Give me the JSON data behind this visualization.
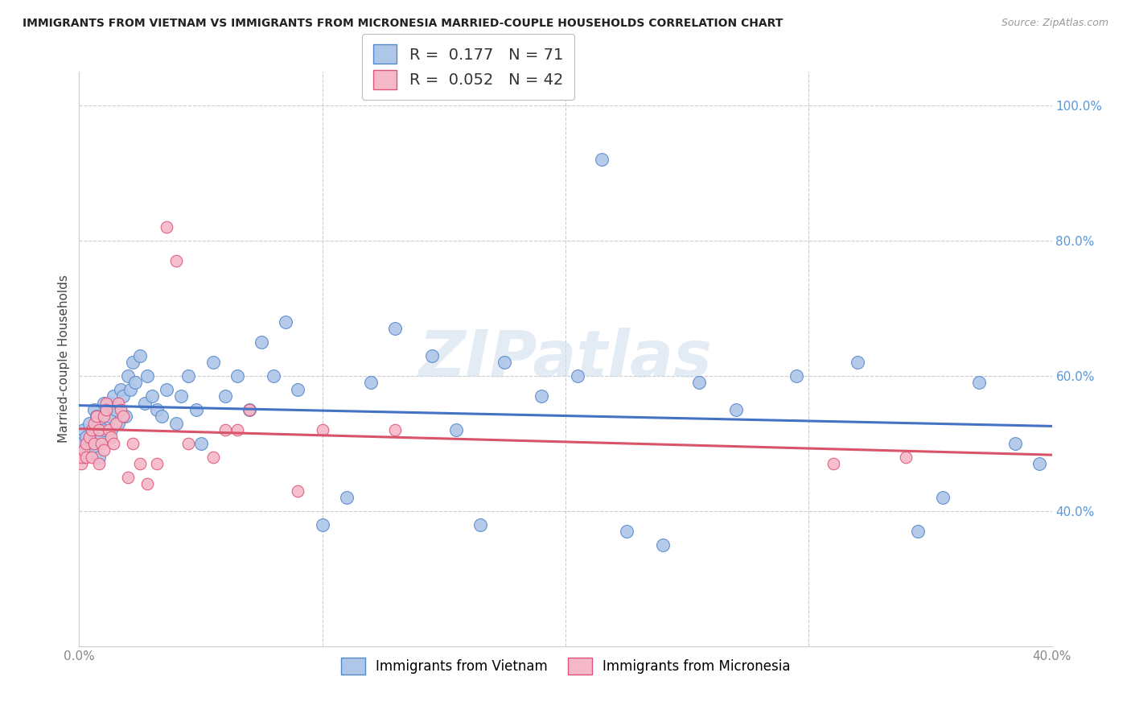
{
  "title": "IMMIGRANTS FROM VIETNAM VS IMMIGRANTS FROM MICRONESIA MARRIED-COUPLE HOUSEHOLDS CORRELATION CHART",
  "source": "Source: ZipAtlas.com",
  "ylabel": "Married-couple Households",
  "series1_label": "Immigrants from Vietnam",
  "series2_label": "Immigrants from Micronesia",
  "series1_R": "0.177",
  "series1_N": "71",
  "series2_R": "0.052",
  "series2_N": "42",
  "series1_color": "#aec6e8",
  "series2_color": "#f5b8c8",
  "series1_edge_color": "#5588cc",
  "series2_edge_color": "#dd5577",
  "series1_line_color": "#4472c4",
  "series2_line_color": "#d9536a",
  "watermark": "ZIPatlas",
  "xlim": [
    0.0,
    0.4
  ],
  "ylim": [
    0.2,
    1.05
  ],
  "vietnam_x": [
    0.001,
    0.002,
    0.002,
    0.003,
    0.004,
    0.005,
    0.005,
    0.006,
    0.006,
    0.007,
    0.008,
    0.008,
    0.009,
    0.01,
    0.01,
    0.011,
    0.012,
    0.013,
    0.013,
    0.014,
    0.015,
    0.016,
    0.017,
    0.018,
    0.019,
    0.02,
    0.021,
    0.022,
    0.023,
    0.025,
    0.027,
    0.028,
    0.03,
    0.032,
    0.034,
    0.036,
    0.04,
    0.042,
    0.045,
    0.048,
    0.05,
    0.055,
    0.06,
    0.065,
    0.07,
    0.075,
    0.08,
    0.085,
    0.09,
    0.1,
    0.11,
    0.12,
    0.13,
    0.145,
    0.155,
    0.165,
    0.175,
    0.19,
    0.205,
    0.215,
    0.225,
    0.24,
    0.255,
    0.27,
    0.295,
    0.32,
    0.345,
    0.355,
    0.37,
    0.385,
    0.395
  ],
  "vietnam_y": [
    0.5,
    0.52,
    0.48,
    0.51,
    0.53,
    0.5,
    0.49,
    0.55,
    0.52,
    0.54,
    0.48,
    0.53,
    0.51,
    0.56,
    0.52,
    0.55,
    0.54,
    0.56,
    0.52,
    0.57,
    0.55,
    0.53,
    0.58,
    0.57,
    0.54,
    0.6,
    0.58,
    0.62,
    0.59,
    0.63,
    0.56,
    0.6,
    0.57,
    0.55,
    0.54,
    0.58,
    0.53,
    0.57,
    0.6,
    0.55,
    0.5,
    0.62,
    0.57,
    0.6,
    0.55,
    0.65,
    0.6,
    0.68,
    0.58,
    0.38,
    0.42,
    0.59,
    0.67,
    0.63,
    0.52,
    0.38,
    0.62,
    0.57,
    0.6,
    0.92,
    0.37,
    0.35,
    0.59,
    0.55,
    0.6,
    0.62,
    0.37,
    0.42,
    0.59,
    0.5,
    0.47
  ],
  "micronesia_x": [
    0.001,
    0.001,
    0.002,
    0.003,
    0.003,
    0.004,
    0.005,
    0.005,
    0.006,
    0.006,
    0.007,
    0.008,
    0.008,
    0.009,
    0.01,
    0.01,
    0.011,
    0.011,
    0.012,
    0.013,
    0.014,
    0.015,
    0.016,
    0.017,
    0.018,
    0.02,
    0.022,
    0.025,
    0.028,
    0.032,
    0.036,
    0.04,
    0.045,
    0.055,
    0.06,
    0.065,
    0.07,
    0.09,
    0.1,
    0.13,
    0.31,
    0.34
  ],
  "micronesia_y": [
    0.47,
    0.48,
    0.49,
    0.48,
    0.5,
    0.51,
    0.52,
    0.48,
    0.5,
    0.53,
    0.54,
    0.52,
    0.47,
    0.5,
    0.54,
    0.49,
    0.56,
    0.55,
    0.52,
    0.51,
    0.5,
    0.53,
    0.56,
    0.55,
    0.54,
    0.45,
    0.5,
    0.47,
    0.44,
    0.47,
    0.82,
    0.77,
    0.5,
    0.48,
    0.52,
    0.52,
    0.55,
    0.43,
    0.52,
    0.52,
    0.47,
    0.48
  ]
}
